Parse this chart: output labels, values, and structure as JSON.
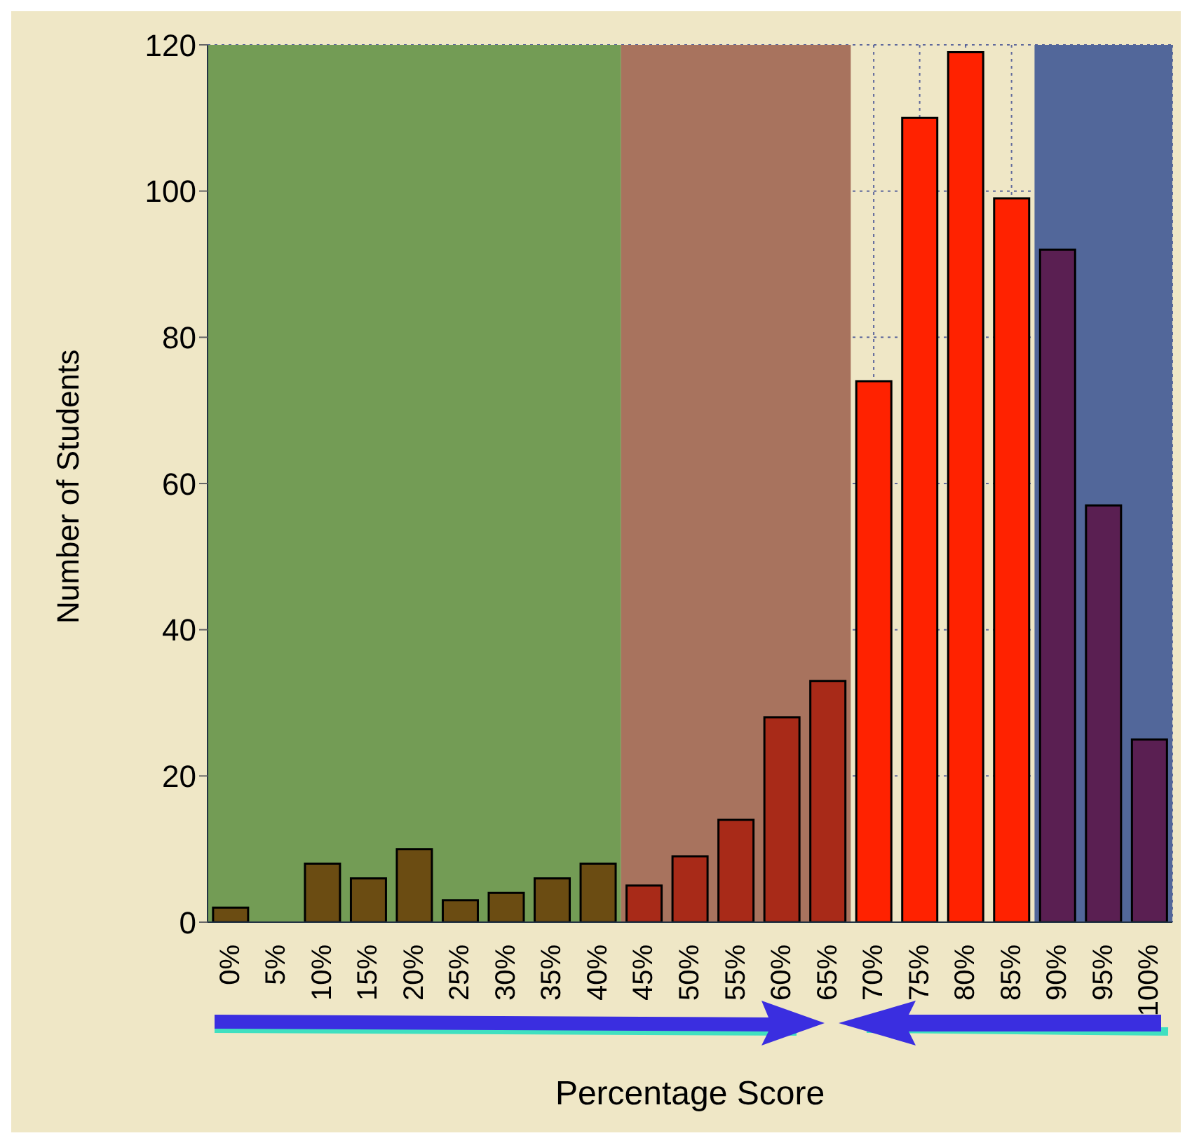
{
  "chart_data": {
    "type": "bar",
    "xlabel": "Percentage Score",
    "ylabel": "Number of Students",
    "categories": [
      "0%",
      "5%",
      "10%",
      "15%",
      "20%",
      "25%",
      "30%",
      "35%",
      "40%",
      "45%",
      "50%",
      "55%",
      "60%",
      "65%",
      "70%",
      "75%",
      "80%",
      "85%",
      "90%",
      "95%",
      "100%"
    ],
    "values": [
      2,
      0,
      8,
      6,
      10,
      3,
      4,
      6,
      8,
      5,
      9,
      14,
      28,
      33,
      74,
      110,
      119,
      99,
      92,
      57,
      25
    ],
    "colors": [
      "#6b4c12",
      "#6b4c12",
      "#6b4c12",
      "#6b4c12",
      "#6b4c12",
      "#6b4c12",
      "#6b4c12",
      "#6b4c12",
      "#6b4c12",
      "#a82a18",
      "#a82a18",
      "#a82a18",
      "#a82a18",
      "#a82a18",
      "#ff2200",
      "#ff2200",
      "#ff2200",
      "#ff2200",
      "#5a1f52",
      "#5a1f52",
      "#5a1f52"
    ],
    "ylim": [
      0,
      120
    ],
    "yticks": [
      0,
      20,
      40,
      60,
      80,
      100,
      120
    ],
    "grid": true,
    "bands": [
      {
        "axis": "x",
        "from": "0%",
        "to": "40%",
        "color": "#739c55"
      },
      {
        "axis": "x",
        "from": "45%",
        "to": "65%",
        "color": "#a8735e"
      },
      {
        "axis": "x",
        "from": "90%",
        "to": "100%",
        "color": "#52679a"
      }
    ]
  }
}
